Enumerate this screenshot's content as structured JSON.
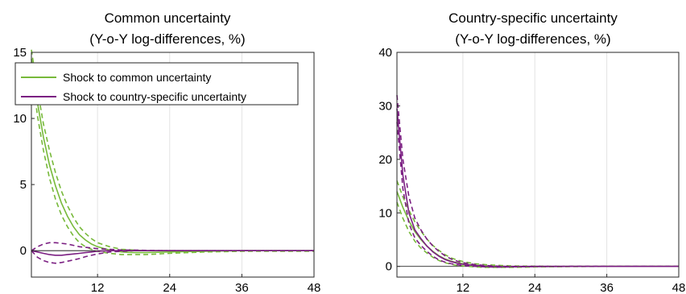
{
  "chart_data": [
    {
      "type": "line",
      "title": "Common uncertainty",
      "subtitle": "(Y-o-Y log-differences, %)",
      "xlim": [
        1,
        48
      ],
      "ylim": [
        -2,
        15
      ],
      "xticks": [
        12,
        24,
        36,
        48
      ],
      "yticks": [
        0,
        5,
        10,
        15
      ],
      "zero_line": true,
      "grid": "x-only",
      "legend_position": "top-left",
      "series": [
        {
          "name": "Shock to common uncertainty",
          "color": "#77b93a",
          "x": [
            1,
            2,
            3,
            4,
            5,
            6,
            7,
            8,
            9,
            10,
            11,
            12,
            14,
            16,
            18,
            20,
            24,
            30,
            36,
            48
          ],
          "median": [
            14.5,
            11.2,
            8.6,
            6.5,
            4.9,
            3.6,
            2.6,
            1.8,
            1.2,
            0.8,
            0.5,
            0.3,
            0.05,
            -0.1,
            -0.15,
            -0.15,
            -0.1,
            -0.05,
            0,
            0
          ],
          "upper": [
            15.2,
            12.2,
            9.6,
            7.6,
            5.9,
            4.5,
            3.4,
            2.5,
            1.8,
            1.3,
            0.9,
            0.6,
            0.3,
            0.1,
            0.05,
            0,
            0,
            0,
            0,
            0
          ],
          "lower": [
            13.8,
            10.2,
            7.6,
            5.5,
            3.9,
            2.7,
            1.8,
            1.1,
            0.6,
            0.3,
            0.1,
            -0.05,
            -0.2,
            -0.3,
            -0.3,
            -0.3,
            -0.2,
            -0.1,
            -0.05,
            -0.05
          ]
        },
        {
          "name": "Shock to country-specific uncertainty",
          "color": "#7b1f82",
          "x": [
            1,
            2,
            3,
            4,
            5,
            6,
            7,
            8,
            9,
            10,
            11,
            12,
            14,
            16,
            18,
            20,
            24,
            30,
            36,
            48
          ],
          "median": [
            0,
            -0.1,
            -0.2,
            -0.3,
            -0.35,
            -0.35,
            -0.3,
            -0.25,
            -0.2,
            -0.15,
            -0.1,
            -0.05,
            0,
            0,
            0,
            0,
            0,
            0,
            0,
            0
          ],
          "upper": [
            0,
            0.3,
            0.5,
            0.6,
            0.6,
            0.55,
            0.5,
            0.4,
            0.3,
            0.25,
            0.2,
            0.15,
            0.1,
            0.05,
            0.05,
            0.02,
            0,
            0,
            0,
            0
          ],
          "lower": [
            0,
            -0.5,
            -0.75,
            -0.9,
            -0.95,
            -0.9,
            -0.8,
            -0.7,
            -0.6,
            -0.45,
            -0.35,
            -0.25,
            -0.1,
            -0.05,
            0,
            0,
            0,
            0,
            0,
            0
          ]
        }
      ],
      "legend": [
        "Shock to common uncertainty",
        "Shock to country-specific uncertainty"
      ]
    },
    {
      "type": "line",
      "title": "Country-specific uncertainty",
      "subtitle": "(Y-o-Y log-differences, %)",
      "xlim": [
        1,
        48
      ],
      "ylim": [
        -2,
        40
      ],
      "xticks": [
        12,
        24,
        36,
        48
      ],
      "yticks": [
        0,
        10,
        20,
        30,
        40
      ],
      "zero_line": true,
      "grid": "x-only",
      "series": [
        {
          "name": "Shock to common uncertainty",
          "color": "#77b93a",
          "x": [
            1,
            2,
            3,
            4,
            5,
            6,
            7,
            8,
            9,
            10,
            11,
            12,
            14,
            16,
            18,
            20,
            24,
            30,
            36,
            48
          ],
          "median": [
            14,
            11,
            8.5,
            6.5,
            5,
            3.8,
            2.8,
            2,
            1.4,
            1,
            0.7,
            0.5,
            0.2,
            0.05,
            0,
            -0.05,
            -0.05,
            0,
            0,
            0
          ],
          "upper": [
            16,
            13,
            10.5,
            8.3,
            6.6,
            5.1,
            3.9,
            3,
            2.2,
            1.6,
            1.2,
            0.9,
            0.5,
            0.3,
            0.2,
            0.1,
            0.05,
            0,
            0,
            0
          ],
          "lower": [
            12,
            9,
            6.5,
            4.7,
            3.4,
            2.5,
            1.7,
            1.1,
            0.7,
            0.4,
            0.2,
            0.1,
            -0.1,
            -0.2,
            -0.2,
            -0.2,
            -0.1,
            -0.05,
            0,
            0
          ]
        },
        {
          "name": "Shock to country-specific uncertainty",
          "color": "#7b1f82",
          "x": [
            1,
            2,
            3,
            4,
            5,
            6,
            7,
            8,
            9,
            10,
            11,
            12,
            14,
            16,
            18,
            20,
            24,
            30,
            36,
            48
          ],
          "median": [
            29.5,
            17,
            10,
            6.8,
            5.2,
            3.8,
            2.7,
            1.9,
            1.3,
            0.9,
            0.6,
            0.4,
            0.15,
            0,
            -0.05,
            -0.05,
            0,
            0,
            0,
            0
          ],
          "upper": [
            32,
            20,
            13,
            9,
            6.8,
            5.1,
            3.8,
            2.8,
            2,
            1.4,
            1,
            0.7,
            0.35,
            0.15,
            0.05,
            0,
            0,
            0,
            0,
            0
          ],
          "lower": [
            27,
            14.5,
            8,
            5.3,
            3.9,
            2.8,
            1.9,
            1.2,
            0.8,
            0.5,
            0.3,
            0.15,
            0,
            -0.1,
            -0.15,
            -0.1,
            -0.05,
            0,
            0,
            0
          ]
        }
      ]
    }
  ]
}
